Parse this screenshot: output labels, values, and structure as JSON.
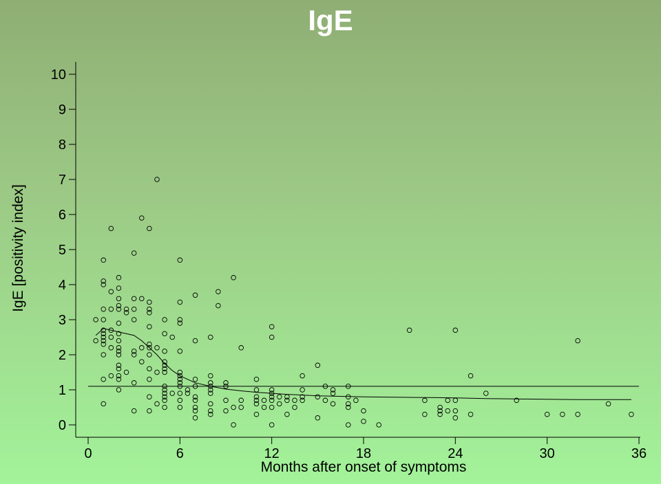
{
  "chart_data": {
    "type": "scatter",
    "title": "IgE",
    "xlabel": "Months after onset of symptoms",
    "ylabel": "IgE [positivity index]",
    "xlim": [
      0,
      36
    ],
    "ylim": [
      0,
      10
    ],
    "x_ticks": [
      0,
      6,
      12,
      18,
      24,
      30,
      36
    ],
    "y_ticks": [
      0,
      1,
      2,
      3,
      4,
      5,
      6,
      7,
      8,
      9,
      10
    ],
    "grid": false,
    "cutoff_line": {
      "y": 1.1
    },
    "trend_line": [
      [
        0.5,
        2.55
      ],
      [
        1,
        2.75
      ],
      [
        1.5,
        2.7
      ],
      [
        2,
        2.65
      ],
      [
        2.5,
        2.6
      ],
      [
        3,
        2.55
      ],
      [
        3.5,
        2.4
      ],
      [
        4,
        2.2
      ],
      [
        4.5,
        2.0
      ],
      [
        5,
        1.75
      ],
      [
        5.5,
        1.55
      ],
      [
        6,
        1.4
      ],
      [
        6.5,
        1.3
      ],
      [
        7,
        1.2
      ],
      [
        8,
        1.1
      ],
      [
        9,
        1.02
      ],
      [
        10,
        0.97
      ],
      [
        11,
        0.93
      ],
      [
        12,
        0.9
      ],
      [
        13,
        0.87
      ],
      [
        14,
        0.85
      ],
      [
        15,
        0.83
      ],
      [
        16,
        0.82
      ],
      [
        17,
        0.81
      ],
      [
        18,
        0.8
      ],
      [
        20,
        0.79
      ],
      [
        22,
        0.78
      ],
      [
        24,
        0.77
      ],
      [
        26,
        0.75
      ],
      [
        28,
        0.74
      ],
      [
        30,
        0.73
      ],
      [
        32,
        0.72
      ],
      [
        34,
        0.72
      ],
      [
        35.5,
        0.72
      ]
    ],
    "points": [
      [
        0.5,
        3.0
      ],
      [
        0.5,
        2.4
      ],
      [
        1,
        4.7
      ],
      [
        1,
        4.1
      ],
      [
        1,
        4.0
      ],
      [
        1,
        3.3
      ],
      [
        1,
        3.0
      ],
      [
        1,
        2.7
      ],
      [
        1,
        2.6
      ],
      [
        1,
        2.5
      ],
      [
        1,
        2.4
      ],
      [
        1,
        2.3
      ],
      [
        1,
        2.0
      ],
      [
        1,
        1.3
      ],
      [
        1,
        0.6
      ],
      [
        1.5,
        5.6
      ],
      [
        1.5,
        3.8
      ],
      [
        1.5,
        3.3
      ],
      [
        1.5,
        2.7
      ],
      [
        1.5,
        2.5
      ],
      [
        1.5,
        2.2
      ],
      [
        1.5,
        1.4
      ],
      [
        2,
        4.2
      ],
      [
        2,
        3.9
      ],
      [
        2,
        3.6
      ],
      [
        2,
        3.4
      ],
      [
        2,
        3.3
      ],
      [
        2,
        2.9
      ],
      [
        2,
        2.6
      ],
      [
        2,
        2.4
      ],
      [
        2,
        2.2
      ],
      [
        2,
        2.1
      ],
      [
        2,
        2.0
      ],
      [
        2,
        1.7
      ],
      [
        2,
        1.6
      ],
      [
        2,
        1.4
      ],
      [
        2,
        1.3
      ],
      [
        2,
        1.0
      ],
      [
        2.5,
        3.3
      ],
      [
        2.5,
        3.2
      ],
      [
        2.5,
        1.5
      ],
      [
        3,
        4.9
      ],
      [
        3,
        3.6
      ],
      [
        3,
        3.3
      ],
      [
        3,
        3.0
      ],
      [
        3,
        2.1
      ],
      [
        3,
        2.0
      ],
      [
        3,
        1.2
      ],
      [
        3,
        0.4
      ],
      [
        3.5,
        5.9
      ],
      [
        3.5,
        3.6
      ],
      [
        3.5,
        2.2
      ],
      [
        3.5,
        1.8
      ],
      [
        4,
        5.6
      ],
      [
        4,
        3.5
      ],
      [
        4,
        3.3
      ],
      [
        4,
        3.2
      ],
      [
        4,
        2.8
      ],
      [
        4,
        2.3
      ],
      [
        4,
        2.2
      ],
      [
        4,
        2.0
      ],
      [
        4,
        1.6
      ],
      [
        4,
        1.3
      ],
      [
        4,
        0.8
      ],
      [
        4,
        0.4
      ],
      [
        4.5,
        7.0
      ],
      [
        4.5,
        2.2
      ],
      [
        4.5,
        1.5
      ],
      [
        4.5,
        0.6
      ],
      [
        5,
        3.0
      ],
      [
        5,
        2.6
      ],
      [
        5,
        2.1
      ],
      [
        5,
        1.8
      ],
      [
        5,
        1.7
      ],
      [
        5,
        1.6
      ],
      [
        5,
        1.5
      ],
      [
        5,
        1.1
      ],
      [
        5,
        1.0
      ],
      [
        5,
        0.9
      ],
      [
        5,
        0.8
      ],
      [
        5,
        0.7
      ],
      [
        5,
        0.5
      ],
      [
        5.5,
        2.5
      ],
      [
        5.5,
        0.9
      ],
      [
        6,
        4.7
      ],
      [
        6,
        3.5
      ],
      [
        6,
        3.0
      ],
      [
        6,
        2.9
      ],
      [
        6,
        2.1
      ],
      [
        6,
        1.5
      ],
      [
        6,
        1.4
      ],
      [
        6,
        1.3
      ],
      [
        6,
        1.2
      ],
      [
        6,
        1.1
      ],
      [
        6,
        0.9
      ],
      [
        6,
        0.7
      ],
      [
        6,
        0.5
      ],
      [
        6.5,
        1.0
      ],
      [
        6.5,
        0.9
      ],
      [
        7,
        3.7
      ],
      [
        7,
        2.4
      ],
      [
        7,
        1.3
      ],
      [
        7,
        1.1
      ],
      [
        7,
        0.8
      ],
      [
        7,
        0.7
      ],
      [
        7,
        0.5
      ],
      [
        7,
        0.4
      ],
      [
        7,
        0.2
      ],
      [
        8,
        2.5
      ],
      [
        8,
        1.4
      ],
      [
        8,
        1.2
      ],
      [
        8,
        1.1
      ],
      [
        8,
        1.0
      ],
      [
        8,
        0.9
      ],
      [
        8,
        0.6
      ],
      [
        8,
        0.4
      ],
      [
        8,
        0.3
      ],
      [
        8.5,
        3.8
      ],
      [
        8.5,
        3.4
      ],
      [
        9,
        1.2
      ],
      [
        9,
        1.1
      ],
      [
        9,
        0.7
      ],
      [
        9,
        0.4
      ],
      [
        9.5,
        4.2
      ],
      [
        9.5,
        0.5
      ],
      [
        9.5,
        0.0
      ],
      [
        10,
        2.2
      ],
      [
        10,
        0.7
      ],
      [
        10,
        0.5
      ],
      [
        11,
        1.3
      ],
      [
        11,
        1.0
      ],
      [
        11,
        0.8
      ],
      [
        11,
        0.7
      ],
      [
        11,
        0.6
      ],
      [
        11,
        0.3
      ],
      [
        11.5,
        0.7
      ],
      [
        11.5,
        0.5
      ],
      [
        12,
        2.8
      ],
      [
        12,
        2.5
      ],
      [
        12,
        1.0
      ],
      [
        12,
        0.9
      ],
      [
        12,
        0.8
      ],
      [
        12,
        0.7
      ],
      [
        12,
        0.5
      ],
      [
        12,
        0.0
      ],
      [
        12.5,
        0.8
      ],
      [
        12.5,
        0.6
      ],
      [
        13,
        0.8
      ],
      [
        13,
        0.7
      ],
      [
        13,
        0.3
      ],
      [
        13.5,
        0.7
      ],
      [
        13.5,
        0.5
      ],
      [
        14,
        1.4
      ],
      [
        14,
        1.0
      ],
      [
        14,
        0.8
      ],
      [
        14,
        0.7
      ],
      [
        15,
        1.7
      ],
      [
        15,
        0.8
      ],
      [
        15,
        0.2
      ],
      [
        15.5,
        1.1
      ],
      [
        15.5,
        0.7
      ],
      [
        16,
        1.0
      ],
      [
        16,
        0.9
      ],
      [
        16,
        0.6
      ],
      [
        17,
        1.1
      ],
      [
        17,
        0.8
      ],
      [
        17,
        0.6
      ],
      [
        17,
        0.5
      ],
      [
        17,
        0.0
      ],
      [
        17.5,
        0.7
      ],
      [
        18,
        0.4
      ],
      [
        18,
        0.1
      ],
      [
        19,
        0.0
      ],
      [
        21,
        2.7
      ],
      [
        22,
        0.7
      ],
      [
        22,
        0.3
      ],
      [
        23,
        0.5
      ],
      [
        23,
        0.4
      ],
      [
        23,
        0.3
      ],
      [
        23.5,
        0.7
      ],
      [
        23.5,
        0.4
      ],
      [
        24,
        2.7
      ],
      [
        24,
        0.7
      ],
      [
        24,
        0.4
      ],
      [
        24,
        0.2
      ],
      [
        25,
        1.4
      ],
      [
        25,
        0.3
      ],
      [
        26,
        0.9
      ],
      [
        28,
        0.7
      ],
      [
        30,
        0.3
      ],
      [
        31,
        0.3
      ],
      [
        32,
        2.4
      ],
      [
        32,
        0.3
      ],
      [
        34,
        0.6
      ],
      [
        35.5,
        0.3
      ]
    ]
  }
}
